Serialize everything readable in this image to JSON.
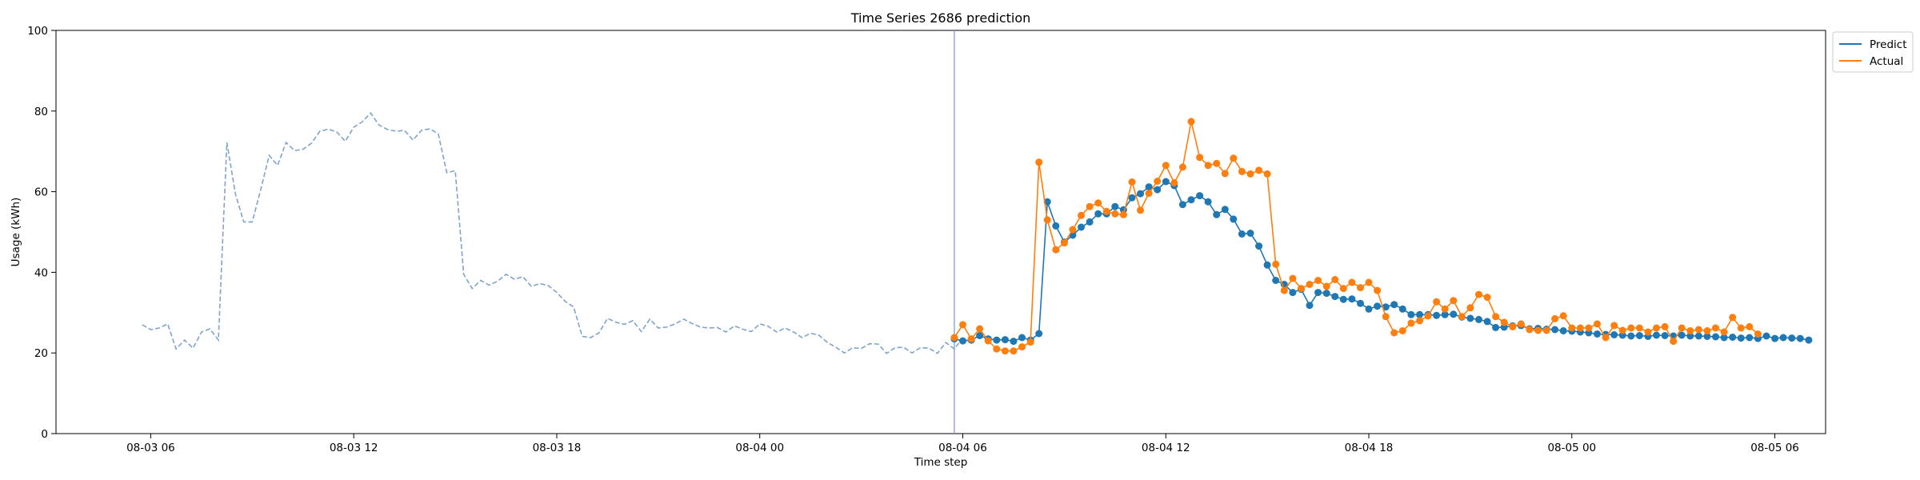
{
  "chart_data": {
    "type": "line",
    "title": "Time Series 2686 prediction",
    "xlabel": "Time step",
    "ylabel": "Usage (kWh)",
    "ylim": [
      0,
      100
    ],
    "yticks": [
      0,
      20,
      40,
      60,
      80,
      100
    ],
    "xticks": [
      {
        "hour": 6,
        "label": "08-03 06"
      },
      {
        "hour": 12,
        "label": "08-03 12"
      },
      {
        "hour": 18,
        "label": "08-03 18"
      },
      {
        "hour": 24,
        "label": "08-04 00"
      },
      {
        "hour": 30,
        "label": "08-04 06"
      },
      {
        "hour": 36,
        "label": "08-04 12"
      },
      {
        "hour": 42,
        "label": "08-04 18"
      },
      {
        "hour": 48,
        "label": "08-05 00"
      },
      {
        "hour": 54,
        "label": "08-05 06"
      }
    ],
    "x_unit_note": "hours from 08-03 00:00",
    "xlim": [
      3.2,
      55.5
    ],
    "forecast_start_hour": 29.75,
    "legend": {
      "position": "top-right",
      "entries": [
        "Predict",
        "Actual"
      ]
    },
    "colors": {
      "history": "#7fa3cc",
      "predict": "#1f77b4",
      "actual": "#ff7f0e",
      "vline": "#7f9bd0"
    },
    "history": {
      "start_hour": 5.75,
      "step_hours": 0.25,
      "values": [
        27,
        25.8,
        26.2,
        27.2,
        21,
        23.2,
        21.2,
        25.2,
        26,
        23.2,
        72.2,
        59.5,
        52.5,
        52.5,
        60.5,
        69,
        66.5,
        72.2,
        70.2,
        70.5,
        72,
        75,
        75.5,
        74.8,
        72.5,
        76,
        77.3,
        79.5,
        76.5,
        75.4,
        75,
        75.2,
        72.8,
        75.2,
        75.6,
        74.3,
        64.7,
        65.2,
        39.5,
        36,
        38,
        36.8,
        37.8,
        39.5,
        38.3,
        38.9,
        36.5,
        37.2,
        36.7,
        35,
        32.8,
        31.4,
        24.1,
        23.8,
        25,
        28.6,
        27.6,
        27.1,
        28,
        25.3,
        28.4,
        26.2,
        26.4,
        27.2,
        28.4,
        27.3,
        26.4,
        26.2,
        26.3,
        25.2,
        26.7,
        25.9,
        25.3,
        27.2,
        26.6,
        25.2,
        26.2,
        25.2,
        23.8,
        24.9,
        24.4,
        22.6,
        21.4,
        20,
        21.3,
        21.1,
        22.3,
        22.2,
        19.9,
        21.3,
        21.4,
        20,
        21.3,
        21.2,
        19.9,
        22.6,
        21,
        23.8
      ]
    },
    "forecast": {
      "start_hour": 29.75,
      "step_hours": 0.25,
      "series": [
        {
          "name": "Predict",
          "values": [
            23.5,
            23,
            23.2,
            24.3,
            23.5,
            23.2,
            23.3,
            22.9,
            23.8,
            23.2,
            24.8,
            57.5,
            51.5,
            47.5,
            49.2,
            51.2,
            52.5,
            54.5,
            54.5,
            56.3,
            55.5,
            58.5,
            59.5,
            61.2,
            60.5,
            62.5,
            61.5,
            56.8,
            58,
            59,
            57.5,
            54.3,
            55.6,
            53.2,
            49.5,
            49.7,
            46.5,
            41.8,
            38,
            37,
            35,
            35.8,
            31.8,
            35,
            34.8,
            34,
            33.3,
            33.4,
            32.3,
            30.9,
            31.6,
            31.4,
            32,
            30.9,
            29.5,
            29.5,
            29.5,
            29.3,
            29.5,
            29.6,
            28.9,
            28.6,
            28.3,
            27.8,
            26.3,
            26.4,
            26.7,
            26.8,
            26,
            26.1,
            25.9,
            25.8,
            25.5,
            25.4,
            25.2,
            25,
            24.7,
            24.6,
            24.5,
            24.4,
            24.2,
            24.3,
            24.1,
            24.4,
            24.3,
            24.2,
            24.4,
            24.2,
            24.2,
            24.1,
            24,
            23.8,
            23.9,
            23.7,
            23.8,
            23.6,
            24.2,
            23.6,
            23.8,
            23.7,
            23.6,
            23.2
          ]
        },
        {
          "name": "Actual",
          "values": [
            23.8,
            27,
            23.5,
            26,
            23,
            21,
            20.5,
            20.5,
            21.5,
            22.7,
            67.3,
            53,
            45.6,
            47.3,
            50.6,
            54.1,
            56.3,
            57.2,
            55.1,
            54.5,
            54.3,
            62.4,
            55.4,
            59.6,
            62.6,
            66.5,
            62.2,
            66.1,
            77.4,
            68.5,
            66.5,
            67,
            64.5,
            68.3,
            65,
            64.4,
            65.3,
            64.4,
            42,
            35.5,
            38.5,
            36,
            37,
            38,
            36.5,
            38.2,
            36,
            37.5,
            36.2,
            37.5,
            35.5,
            29,
            25,
            25.5,
            27.4,
            28,
            29.2,
            32.7,
            30.9,
            33,
            29,
            31.2,
            34.5,
            33.8,
            29,
            27.6,
            26.5,
            27.2,
            25.8,
            25.6,
            25.6,
            28.5,
            29.2,
            26.2,
            26.2,
            26.2,
            27.2,
            23.8,
            26.8,
            25.6,
            26.2,
            26.2,
            25.2,
            26.2,
            26.5,
            22.9,
            26.2,
            25.5,
            25.8,
            25.5,
            26.2,
            25.2,
            28.8,
            26.2,
            26.5,
            24.7
          ]
        }
      ]
    }
  }
}
